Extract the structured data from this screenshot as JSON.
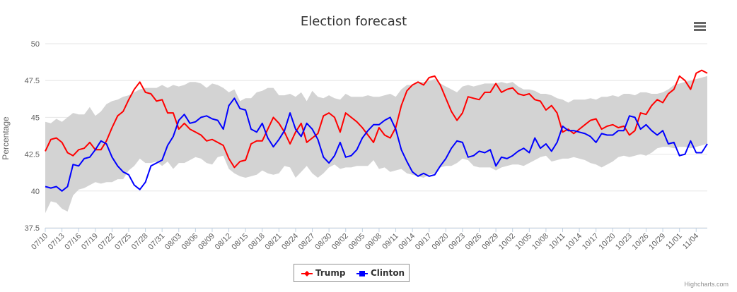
{
  "colors": {
    "trump": "#ff0000",
    "clinton": "#0000ff",
    "band": "#d3d3d3",
    "grid": "#e6e6e6"
  },
  "menu_icon": "hamburger-menu-icon",
  "credits": "Highcharts.com",
  "chart_data": {
    "type": "line",
    "title": "Election forecast",
    "ylabel": "Percentage",
    "xlabel": "",
    "ylim": [
      37.5,
      50
    ],
    "y_ticks": [
      "37.5",
      "40",
      "42.5",
      "45",
      "47.5",
      "50"
    ],
    "x_start": "07/10",
    "x_end": "11/07",
    "x_tick_labels": [
      "07/10",
      "07/13",
      "07/16",
      "07/19",
      "07/22",
      "07/25",
      "07/28",
      "07/31",
      "08/03",
      "08/06",
      "08/09",
      "08/12",
      "08/15",
      "08/18",
      "08/21",
      "08/24",
      "08/27",
      "08/30",
      "09/02",
      "09/05",
      "09/08",
      "09/11",
      "09/14",
      "09/17",
      "09/20",
      "09/23",
      "09/26",
      "09/29",
      "10/02",
      "10/05",
      "10/08",
      "10/11",
      "10/14",
      "10/17",
      "10/20",
      "10/23",
      "10/26",
      "10/29",
      "11/01",
      "11/04"
    ],
    "grid": true,
    "legend_position": "bottom-center",
    "series": [
      {
        "name": "Trump",
        "color": "#ff0000",
        "values": [
          42.7,
          43.5,
          43.6,
          43.3,
          42.6,
          42.4,
          42.8,
          42.9,
          43.3,
          42.8,
          42.8,
          43.4,
          44.3,
          45.1,
          45.4,
          46.2,
          46.9,
          47.4,
          46.7,
          46.6,
          46.1,
          46.2,
          45.3,
          45.3,
          44.2,
          44.6,
          44.2,
          44.0,
          43.8,
          43.4,
          43.5,
          43.3,
          43.1,
          42.2,
          41.6,
          42.0,
          42.1,
          43.2,
          43.4,
          43.4,
          44.2,
          45.0,
          44.6,
          44.0,
          43.2,
          44.0,
          44.6,
          43.3,
          43.6,
          43.9,
          45.1,
          45.3,
          45.0,
          44.0,
          45.3,
          45.0,
          44.7,
          44.3,
          43.8,
          43.3,
          44.3,
          43.8,
          43.6,
          44.3,
          45.8,
          46.8,
          47.2,
          47.4,
          47.2,
          47.7,
          47.8,
          47.2,
          46.3,
          45.4,
          44.8,
          45.3,
          46.4,
          46.3,
          46.2,
          46.7,
          46.7,
          47.3,
          46.7,
          46.9,
          47.0,
          46.6,
          46.5,
          46.6,
          46.2,
          46.1,
          45.5,
          45.8,
          45.3,
          44.0,
          44.2,
          43.9,
          44.2,
          44.5,
          44.8,
          44.9,
          44.2,
          44.4,
          44.5,
          44.3,
          44.4,
          43.8,
          44.1,
          45.3,
          45.2,
          45.8,
          46.2,
          46.0,
          46.6,
          46.9,
          47.8,
          47.5,
          46.9,
          48.0,
          48.2,
          48.0
        ]
      },
      {
        "name": "Clinton",
        "color": "#0000ff",
        "values": [
          40.3,
          40.2,
          40.3,
          40.0,
          40.3,
          41.8,
          41.7,
          42.2,
          42.3,
          42.8,
          43.4,
          43.2,
          42.3,
          41.7,
          41.3,
          41.1,
          40.4,
          40.1,
          40.6,
          41.7,
          41.9,
          42.1,
          43.1,
          43.7,
          44.8,
          45.2,
          44.6,
          44.7,
          45.0,
          45.1,
          44.9,
          44.8,
          44.2,
          45.8,
          46.3,
          45.6,
          45.5,
          44.2,
          44.0,
          44.6,
          43.6,
          43.0,
          43.5,
          44.1,
          45.3,
          44.2,
          43.7,
          44.6,
          44.2,
          43.5,
          42.3,
          41.9,
          42.4,
          43.3,
          42.3,
          42.4,
          42.8,
          43.6,
          44.1,
          44.5,
          44.5,
          44.8,
          45.0,
          44.2,
          42.8,
          42.0,
          41.3,
          41.0,
          41.2,
          41.0,
          41.1,
          41.7,
          42.2,
          42.9,
          43.4,
          43.3,
          42.3,
          42.4,
          42.7,
          42.6,
          42.8,
          41.7,
          42.3,
          42.2,
          42.4,
          42.7,
          42.9,
          42.6,
          43.6,
          42.9,
          43.2,
          42.7,
          43.3,
          44.4,
          44.1,
          44.1,
          44.0,
          43.9,
          43.7,
          43.3,
          43.9,
          43.8,
          43.8,
          44.1,
          44.1,
          45.1,
          45.0,
          44.2,
          44.5,
          44.1,
          43.8,
          44.1,
          43.2,
          43.3,
          42.4,
          42.5,
          43.4,
          42.6,
          42.6,
          43.2
        ]
      }
    ],
    "band": {
      "upper": [
        44.7,
        44.6,
        44.9,
        44.7,
        45.0,
        45.3,
        45.2,
        45.2,
        45.7,
        45.1,
        45.4,
        45.9,
        46.1,
        46.2,
        46.4,
        46.5,
        46.7,
        46.9,
        47.0,
        47.0,
        47.0,
        47.2,
        47.0,
        47.2,
        47.1,
        47.2,
        47.4,
        47.4,
        47.3,
        47.0,
        47.3,
        47.2,
        47.0,
        46.7,
        46.9,
        46.1,
        46.3,
        46.3,
        46.7,
        46.8,
        47.0,
        47.0,
        46.5,
        46.5,
        46.6,
        46.4,
        46.7,
        46.1,
        46.8,
        46.4,
        46.3,
        46.5,
        46.3,
        46.2,
        46.6,
        46.4,
        46.4,
        46.4,
        46.5,
        46.4,
        46.4,
        46.5,
        46.6,
        46.4,
        46.9,
        47.2,
        47.2,
        47.4,
        47.4,
        47.5,
        47.6,
        47.3,
        47.1,
        46.9,
        46.7,
        47.1,
        47.2,
        47.1,
        47.2,
        47.3,
        47.3,
        47.3,
        47.4,
        47.3,
        47.4,
        47.1,
        46.9,
        46.9,
        46.8,
        46.6,
        46.6,
        46.5,
        46.3,
        46.2,
        46.0,
        46.2,
        46.2,
        46.2,
        46.3,
        46.2,
        46.4,
        46.4,
        46.5,
        46.4,
        46.6,
        46.6,
        46.5,
        46.7,
        46.7,
        46.6,
        46.6,
        46.7,
        46.9,
        47.2,
        47.3,
        47.4,
        47.5,
        47.6,
        47.7,
        47.8
      ],
      "lower": [
        38.5,
        39.3,
        39.2,
        38.8,
        38.6,
        39.7,
        40.1,
        40.2,
        40.4,
        40.6,
        40.5,
        40.6,
        40.6,
        40.8,
        40.8,
        41.4,
        41.7,
        42.2,
        41.9,
        41.9,
        42.0,
        41.7,
        42.0,
        41.5,
        41.9,
        41.9,
        42.1,
        42.3,
        42.2,
        41.9,
        41.8,
        42.3,
        42.4,
        41.5,
        41.2,
        41.0,
        40.9,
        41.0,
        41.1,
        41.4,
        41.2,
        41.1,
        41.2,
        41.7,
        41.6,
        40.9,
        41.3,
        41.7,
        41.2,
        40.9,
        41.2,
        41.6,
        41.8,
        41.5,
        41.6,
        41.6,
        41.7,
        41.7,
        41.7,
        42.1,
        41.5,
        41.6,
        41.3,
        41.4,
        41.5,
        41.2,
        41.1,
        41.0,
        40.9,
        41.1,
        41.2,
        41.6,
        41.7,
        41.7,
        41.9,
        42.2,
        42.1,
        41.7,
        41.6,
        41.6,
        41.6,
        41.4,
        41.6,
        41.7,
        41.8,
        41.8,
        41.7,
        41.9,
        42.1,
        42.3,
        42.4,
        42.0,
        42.1,
        42.2,
        42.2,
        42.3,
        42.2,
        42.1,
        41.9,
        41.8,
        41.6,
        41.8,
        42.0,
        42.3,
        42.4,
        42.3,
        42.4,
        42.5,
        42.4,
        42.6,
        42.9,
        43.0,
        43.0,
        42.9,
        43.0,
        43.0,
        42.9,
        43.0,
        43.1,
        43.2
      ]
    }
  }
}
